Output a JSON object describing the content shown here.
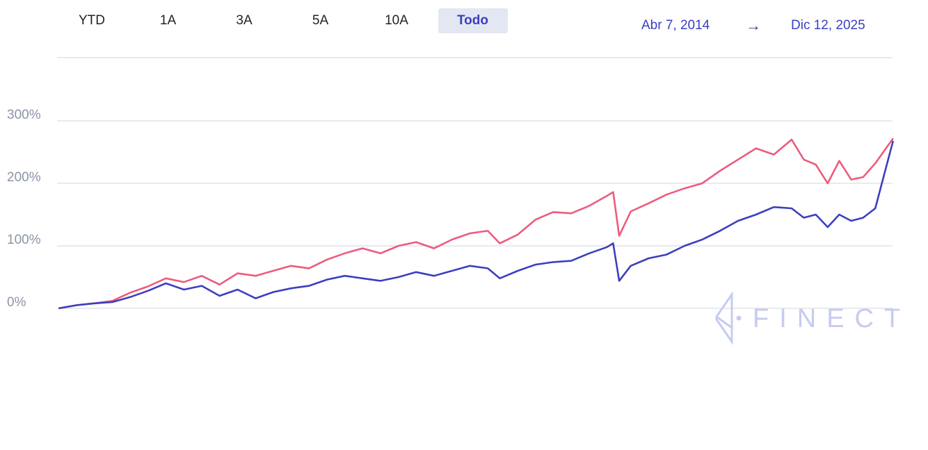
{
  "range_selector": {
    "buttons": [
      "YTD",
      "1A",
      "3A",
      "5A",
      "10A",
      "Todo"
    ],
    "active": "Todo"
  },
  "date_range": {
    "start": "Abr 7, 2014",
    "arrow": "→",
    "end": "Dic 12, 2025"
  },
  "watermark": {
    "text": "FINECT"
  },
  "chart_data": {
    "type": "line",
    "x_range": [
      "2014-04-07",
      "2025-12-12"
    ],
    "ylim": [
      -25,
      400
    ],
    "y_ticks": [
      0,
      100,
      200,
      300
    ],
    "y_tick_labels": [
      "0%",
      "100%",
      "200%",
      "300%"
    ],
    "grid": true,
    "series": [
      {
        "color": "#ee5a7e",
        "points": [
          [
            "2014-04",
            0
          ],
          [
            "2014-07",
            5
          ],
          [
            "2014-10",
            8
          ],
          [
            "2015-01",
            12
          ],
          [
            "2015-04",
            25
          ],
          [
            "2015-07",
            35
          ],
          [
            "2015-10",
            48
          ],
          [
            "2016-01",
            42
          ],
          [
            "2016-04",
            52
          ],
          [
            "2016-07",
            38
          ],
          [
            "2016-10",
            56
          ],
          [
            "2017-01",
            52
          ],
          [
            "2017-04",
            60
          ],
          [
            "2017-07",
            68
          ],
          [
            "2017-10",
            64
          ],
          [
            "2018-01",
            78
          ],
          [
            "2018-04",
            88
          ],
          [
            "2018-07",
            96
          ],
          [
            "2018-10",
            88
          ],
          [
            "2019-01",
            100
          ],
          [
            "2019-04",
            106
          ],
          [
            "2019-07",
            96
          ],
          [
            "2019-10",
            110
          ],
          [
            "2020-01",
            120
          ],
          [
            "2020-04",
            124
          ],
          [
            "2020-06",
            104
          ],
          [
            "2020-09",
            118
          ],
          [
            "2020-12",
            142
          ],
          [
            "2021-03",
            154
          ],
          [
            "2021-06",
            152
          ],
          [
            "2021-09",
            164
          ],
          [
            "2021-12",
            180
          ],
          [
            "2022-01",
            186
          ],
          [
            "2022-02",
            116
          ],
          [
            "2022-04",
            155
          ],
          [
            "2022-07",
            168
          ],
          [
            "2022-10",
            182
          ],
          [
            "2023-01",
            192
          ],
          [
            "2023-04",
            200
          ],
          [
            "2023-07",
            220
          ],
          [
            "2023-10",
            238
          ],
          [
            "2024-01",
            256
          ],
          [
            "2024-04",
            246
          ],
          [
            "2024-07",
            270
          ],
          [
            "2024-09",
            238
          ],
          [
            "2024-11",
            230
          ],
          [
            "2025-01",
            200
          ],
          [
            "2025-03",
            236
          ],
          [
            "2025-05",
            206
          ],
          [
            "2025-07",
            210
          ],
          [
            "2025-09",
            232
          ],
          [
            "2025-12",
            272
          ]
        ]
      },
      {
        "color": "#3b3fbf",
        "points": [
          [
            "2014-04",
            0
          ],
          [
            "2014-07",
            5
          ],
          [
            "2014-10",
            8
          ],
          [
            "2015-01",
            10
          ],
          [
            "2015-04",
            18
          ],
          [
            "2015-07",
            28
          ],
          [
            "2015-10",
            40
          ],
          [
            "2016-01",
            30
          ],
          [
            "2016-04",
            36
          ],
          [
            "2016-07",
            20
          ],
          [
            "2016-10",
            30
          ],
          [
            "2017-01",
            16
          ],
          [
            "2017-04",
            26
          ],
          [
            "2017-07",
            32
          ],
          [
            "2017-10",
            36
          ],
          [
            "2018-01",
            46
          ],
          [
            "2018-04",
            52
          ],
          [
            "2018-07",
            48
          ],
          [
            "2018-10",
            44
          ],
          [
            "2019-01",
            50
          ],
          [
            "2019-04",
            58
          ],
          [
            "2019-07",
            52
          ],
          [
            "2019-10",
            60
          ],
          [
            "2020-01",
            68
          ],
          [
            "2020-04",
            64
          ],
          [
            "2020-06",
            48
          ],
          [
            "2020-09",
            60
          ],
          [
            "2020-12",
            70
          ],
          [
            "2021-03",
            74
          ],
          [
            "2021-06",
            76
          ],
          [
            "2021-09",
            88
          ],
          [
            "2021-12",
            98
          ],
          [
            "2022-01",
            104
          ],
          [
            "2022-02",
            44
          ],
          [
            "2022-04",
            68
          ],
          [
            "2022-07",
            80
          ],
          [
            "2022-10",
            86
          ],
          [
            "2023-01",
            100
          ],
          [
            "2023-04",
            110
          ],
          [
            "2023-07",
            124
          ],
          [
            "2023-10",
            140
          ],
          [
            "2024-01",
            150
          ],
          [
            "2024-04",
            162
          ],
          [
            "2024-07",
            160
          ],
          [
            "2024-09",
            145
          ],
          [
            "2024-11",
            150
          ],
          [
            "2025-01",
            130
          ],
          [
            "2025-03",
            150
          ],
          [
            "2025-05",
            140
          ],
          [
            "2025-07",
            145
          ],
          [
            "2025-09",
            160
          ],
          [
            "2025-12",
            268
          ]
        ]
      }
    ]
  }
}
